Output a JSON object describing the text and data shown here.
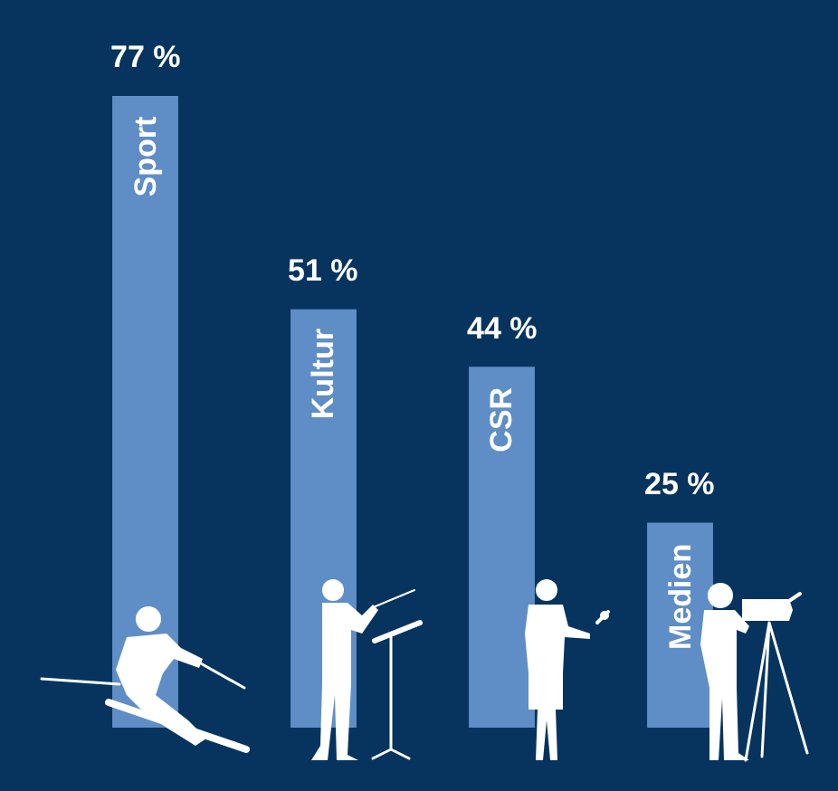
{
  "chart_data": {
    "type": "bar",
    "categories": [
      "Sport",
      "Kultur",
      "CSR",
      "Medien"
    ],
    "values": [
      77,
      51,
      44,
      25
    ],
    "color": "#5f8ec6",
    "value_labels": [
      "77 %",
      "51 %",
      "44 %",
      "25 %"
    ],
    "tick_labels": false
  }
}
